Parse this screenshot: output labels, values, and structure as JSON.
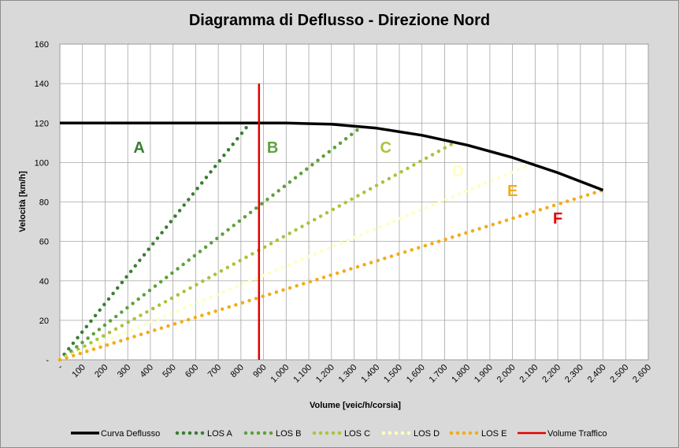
{
  "chart_data": {
    "type": "line",
    "title": "Diagramma di Deflusso - Direzione Nord",
    "xlabel": "Volume [veic/h/corsia]",
    "ylabel": "Velocità [km/h]",
    "xlim": [
      0,
      2600
    ],
    "ylim": [
      0,
      160
    ],
    "x_ticks": [
      0,
      100,
      200,
      300,
      400,
      500,
      600,
      700,
      800,
      900,
      1000,
      1100,
      1200,
      1300,
      1400,
      1500,
      1600,
      1700,
      1800,
      1900,
      2000,
      2100,
      2200,
      2300,
      2400,
      2500,
      2600
    ],
    "x_tick_labels": [
      "-",
      "100",
      "200",
      "300",
      "400",
      "500",
      "600",
      "700",
      "800",
      "900",
      "1.000",
      "1.100",
      "1.200",
      "1.300",
      "1.400",
      "1.500",
      "1.600",
      "1.700",
      "1.800",
      "1.900",
      "2.000",
      "2.100",
      "2.200",
      "2.300",
      "2.400",
      "2.500",
      "2.600"
    ],
    "y_ticks": [
      0,
      20,
      40,
      60,
      80,
      100,
      120,
      140,
      160
    ],
    "y_tick_labels": [
      "-",
      "20",
      "40",
      "60",
      "80",
      "100",
      "120",
      "140",
      "160"
    ],
    "grid": true,
    "legend_position": "bottom",
    "series": [
      {
        "name": "Curva Deflusso",
        "style": "solid",
        "color": "#000000",
        "points": [
          [
            0,
            120
          ],
          [
            1000,
            120
          ],
          [
            1200,
            119.4
          ],
          [
            1400,
            117.4
          ],
          [
            1600,
            113.8
          ],
          [
            1800,
            108.8
          ],
          [
            2000,
            102.5
          ],
          [
            2200,
            94.8
          ],
          [
            2400,
            86
          ]
        ]
      },
      {
        "name": "LOS A",
        "style": "dotted",
        "color": "#3a7d32",
        "points": [
          [
            0,
            0
          ],
          [
            840,
            120
          ]
        ]
      },
      {
        "name": "LOS B",
        "style": "dotted",
        "color": "#5ea03c",
        "points": [
          [
            0,
            0
          ],
          [
            1320,
            117
          ]
        ]
      },
      {
        "name": "LOS C",
        "style": "dotted",
        "color": "#a6c53d",
        "points": [
          [
            0,
            0
          ],
          [
            1750,
            110.5
          ]
        ]
      },
      {
        "name": "LOS D",
        "style": "dotted",
        "color": "#ffffc0",
        "points": [
          [
            0,
            0
          ],
          [
            2080,
            99
          ]
        ]
      },
      {
        "name": "LOS E",
        "style": "dotted",
        "color": "#f2ac1a",
        "points": [
          [
            0,
            0
          ],
          [
            2400,
            86
          ]
        ]
      },
      {
        "name": "Volume Traffico",
        "style": "solid",
        "color": "#e00000",
        "points": [
          [
            880,
            0
          ],
          [
            880,
            140
          ]
        ]
      }
    ],
    "annotations": [
      {
        "text": "A",
        "x": 350,
        "y": 105,
        "color": "#3a7d32"
      },
      {
        "text": "B",
        "x": 940,
        "y": 105,
        "color": "#5ea03c"
      },
      {
        "text": "C",
        "x": 1440,
        "y": 105,
        "color": "#a6c53d"
      },
      {
        "text": "D",
        "x": 1760,
        "y": 93,
        "color": "#ffffc0"
      },
      {
        "text": "E",
        "x": 2000,
        "y": 83,
        "color": "#f2ac1a"
      },
      {
        "text": "F",
        "x": 2200,
        "y": 69,
        "color": "#e00000"
      }
    ]
  }
}
